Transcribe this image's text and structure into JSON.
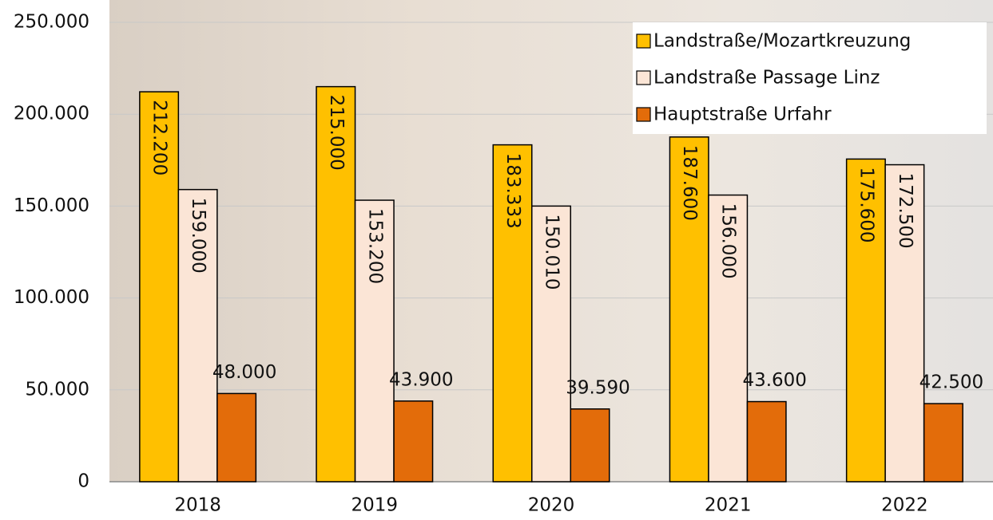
{
  "chart_data": {
    "type": "bar",
    "categories": [
      "2018",
      "2019",
      "2020",
      "2021",
      "2022"
    ],
    "series": [
      {
        "name": "Landstraße/Mozartkreuzung",
        "color": "#ffc000",
        "values": [
          212200,
          215000,
          183333,
          187600,
          175600
        ],
        "value_labels": [
          "212.200",
          "215.000",
          "183.333",
          "187.600",
          "175.600"
        ]
      },
      {
        "name": "Landstraße Passage Linz",
        "color": "#fbe5d6",
        "values": [
          159000,
          153200,
          150010,
          156000,
          172500
        ],
        "value_labels": [
          "159.000",
          "153.200",
          "150.010",
          "156.000",
          "172.500"
        ]
      },
      {
        "name": "Hauptstraße Urfahr",
        "color": "#e36c0a",
        "values": [
          48000,
          43900,
          39590,
          43600,
          42500
        ],
        "value_labels": [
          "48.000",
          "43.900",
          "39.590",
          "43.600",
          "42.500"
        ]
      }
    ],
    "ylim": [
      0,
      250000
    ],
    "yticks": [
      0,
      {
        "value": 50000,
        "label": "50.000"
      },
      {
        "value": 100000,
        "label": "100.000"
      },
      {
        "value": 150000,
        "label": "150.000"
      },
      {
        "value": 200000,
        "label": "200.000"
      },
      {
        "value": 250000,
        "label": "250.000"
      }
    ],
    "grid": true,
    "legend": "top-right"
  }
}
